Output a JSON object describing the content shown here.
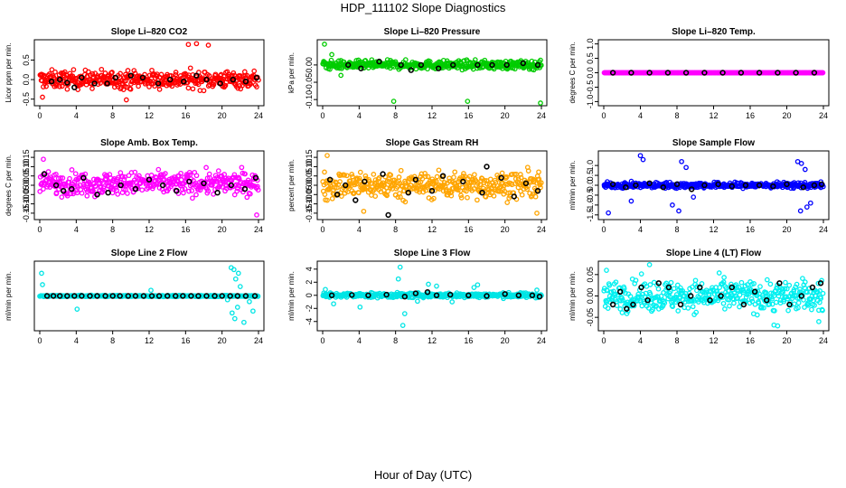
{
  "title": "HDP_111102  Slope Diagnostics",
  "xlabel": "Hour of Day (UTC)",
  "chart_data": [
    {
      "type": "scatter",
      "title": "Slope Li–820 CO2",
      "ylabel": "Licor ppm per min.",
      "xlim": [
        0,
        24
      ],
      "ylim": [
        -0.6,
        0.95
      ],
      "xticks": [
        "0",
        "4",
        "8",
        "12",
        "16",
        "20",
        "24"
      ],
      "yticks": [
        "-0.5",
        "0.0",
        "0.5"
      ],
      "ytick_values": [
        -0.5,
        0.0,
        0.5
      ],
      "color": "#ff0000",
      "spread": 0.22,
      "center": 0.0,
      "outliers": [
        [
          16.3,
          0.9
        ],
        [
          17.2,
          0.92
        ],
        [
          18.5,
          0.88
        ],
        [
          0.3,
          -0.45
        ],
        [
          9.5,
          -0.52
        ]
      ],
      "black_points": [
        [
          1.3,
          -0.05
        ],
        [
          2.2,
          0.0
        ],
        [
          3.0,
          -0.08
        ],
        [
          3.8,
          -0.2
        ],
        [
          4.6,
          0.05
        ],
        [
          6.0,
          -0.1
        ],
        [
          7.4,
          -0.1
        ],
        [
          8.3,
          0.05
        ],
        [
          10.0,
          0.1
        ],
        [
          11.3,
          0.05
        ],
        [
          13.0,
          -0.1
        ],
        [
          14.3,
          0.0
        ],
        [
          15.8,
          -0.05
        ],
        [
          17.2,
          0.1
        ],
        [
          18.3,
          0.0
        ],
        [
          19.8,
          -0.1
        ],
        [
          21.2,
          0.0
        ],
        [
          22.6,
          -0.05
        ],
        [
          23.8,
          0.05
        ]
      ]
    },
    {
      "type": "scatter",
      "title": "Slope Li–820 Pressure",
      "ylabel": "kPa per min.",
      "xlim": [
        0,
        24
      ],
      "ylim": [
        -0.11,
        0.065
      ],
      "xticks": [
        "0",
        "4",
        "8",
        "12",
        "16",
        "20",
        "24"
      ],
      "yticks": [
        "-0.10",
        "-0.05",
        "0.00"
      ],
      "ytick_values": [
        -0.1,
        -0.05,
        0.0
      ],
      "color": "#00cc00",
      "spread": 0.012,
      "center": 0.0,
      "outliers": [
        [
          0.2,
          0.06
        ],
        [
          7.8,
          -0.105
        ],
        [
          15.9,
          -0.105
        ],
        [
          23.9,
          -0.11
        ],
        [
          1.0,
          0.03
        ],
        [
          2.0,
          -0.03
        ]
      ],
      "black_points": [
        [
          2.8,
          0.0
        ],
        [
          4.2,
          -0.01
        ],
        [
          6.2,
          0.01
        ],
        [
          8.6,
          0.0
        ],
        [
          9.7,
          -0.015
        ],
        [
          10.8,
          0.0
        ],
        [
          12.7,
          -0.01
        ],
        [
          14.3,
          0.0
        ],
        [
          17.0,
          0.0
        ],
        [
          18.6,
          0.0
        ],
        [
          20.2,
          0.0
        ],
        [
          22.0,
          0.005
        ],
        [
          23.6,
          0.0
        ]
      ]
    },
    {
      "type": "scatter",
      "title": "Slope Li–820 Temp.",
      "ylabel": "degrees C per min.",
      "xlim": [
        0,
        24
      ],
      "ylim": [
        -1.05,
        1.05
      ],
      "xticks": [
        "0",
        "4",
        "8",
        "12",
        "16",
        "20",
        "24"
      ],
      "yticks": [
        "-1.0",
        "-0.5",
        "0.0",
        "0.5",
        "1.0"
      ],
      "ytick_values": [
        -1.0,
        -0.5,
        0.0,
        0.5,
        1.0
      ],
      "color": "#ff00ff",
      "spread": 0.0,
      "center": 0.0,
      "outliers": [],
      "black_points": [
        [
          1.0,
          0.0
        ],
        [
          3.0,
          0.0
        ],
        [
          5.0,
          0.0
        ],
        [
          7.0,
          0.0
        ],
        [
          9.0,
          0.0
        ],
        [
          11.0,
          0.0
        ],
        [
          13.0,
          0.0
        ],
        [
          15.0,
          0.0
        ],
        [
          17.0,
          0.0
        ],
        [
          19.0,
          0.0
        ],
        [
          21.0,
          0.0
        ],
        [
          23.0,
          0.0
        ]
      ]
    },
    {
      "type": "scatter",
      "title": "Slope Amb. Box Temp.",
      "ylabel": "degrees C per min.",
      "xlim": [
        0,
        24
      ],
      "ylim": [
        -0.17,
        0.17
      ],
      "xticks": [
        "0",
        "4",
        "8",
        "12",
        "16",
        "20",
        "24"
      ],
      "yticks": [
        "-0.15",
        "-0.10",
        "-0.05",
        "0.00",
        "0.05",
        "0.10",
        "0.15"
      ],
      "ytick_values": [
        -0.15,
        -0.1,
        -0.05,
        0.0,
        0.05,
        0.1,
        0.15
      ],
      "color": "#ff00ff",
      "spread": 0.06,
      "center": 0.01,
      "outliers": [
        [
          23.8,
          -0.16
        ],
        [
          0.4,
          0.14
        ]
      ],
      "black_points": [
        [
          0.5,
          0.06
        ],
        [
          1.8,
          0.0
        ],
        [
          2.6,
          -0.03
        ],
        [
          3.5,
          -0.02
        ],
        [
          4.8,
          0.04
        ],
        [
          6.3,
          -0.05
        ],
        [
          7.5,
          -0.04
        ],
        [
          8.9,
          0.0
        ],
        [
          10.5,
          -0.02
        ],
        [
          12.0,
          0.03
        ],
        [
          13.5,
          0.0
        ],
        [
          15.0,
          -0.03
        ],
        [
          16.4,
          0.02
        ],
        [
          18.0,
          0.01
        ],
        [
          19.5,
          -0.04
        ],
        [
          21.0,
          0.0
        ],
        [
          22.5,
          -0.02
        ],
        [
          23.7,
          0.04
        ]
      ]
    },
    {
      "type": "scatter",
      "title": "Slope Gas Stream RH",
      "ylabel": "percent per min.",
      "xlim": [
        0,
        24
      ],
      "ylim": [
        -0.17,
        0.17
      ],
      "xticks": [
        "0",
        "4",
        "8",
        "12",
        "16",
        "20",
        "24"
      ],
      "yticks": [
        "-0.15",
        "-0.10",
        "-0.05",
        "0.00",
        "0.05",
        "0.10",
        "0.15"
      ],
      "ytick_values": [
        -0.15,
        -0.1,
        -0.05,
        0.0,
        0.05,
        0.1,
        0.15
      ],
      "color": "#ffa500",
      "spread": 0.07,
      "center": 0.0,
      "outliers": [
        [
          0.5,
          0.16
        ],
        [
          23.5,
          -0.15
        ],
        [
          4.5,
          -0.14
        ]
      ],
      "black_points": [
        [
          0.8,
          0.03
        ],
        [
          1.6,
          -0.05
        ],
        [
          2.5,
          0.0
        ],
        [
          3.6,
          -0.08
        ],
        [
          4.6,
          0.02
        ],
        [
          6.6,
          0.06
        ],
        [
          7.2,
          -0.16
        ],
        [
          9.4,
          -0.04
        ],
        [
          10.2,
          0.03
        ],
        [
          12.0,
          -0.03
        ],
        [
          13.2,
          0.05
        ],
        [
          15.4,
          0.02
        ],
        [
          17.5,
          -0.04
        ],
        [
          18.0,
          0.1
        ],
        [
          19.6,
          0.04
        ],
        [
          21.0,
          -0.06
        ],
        [
          22.3,
          0.01
        ],
        [
          23.6,
          -0.03
        ]
      ]
    },
    {
      "type": "scatter",
      "title": "Slope Sample Flow",
      "ylabel": "ml/min per min.",
      "xlim": [
        0,
        24
      ],
      "ylim": [
        -1.6,
        1.6
      ],
      "xticks": [
        "0",
        "4",
        "8",
        "12",
        "16",
        "20",
        "24"
      ],
      "yticks": [
        "-1.5",
        "-1.0",
        "-0.5",
        "0.0",
        "0.5",
        "1.0"
      ],
      "ytick_values": [
        -1.5,
        -1.0,
        -0.5,
        0.0,
        0.5,
        1.0
      ],
      "color": "#0000ff",
      "spread": 0.14,
      "center": 0.0,
      "outliers": [
        [
          4.0,
          1.5
        ],
        [
          4.3,
          1.3
        ],
        [
          8.5,
          1.2
        ],
        [
          9.0,
          0.9
        ],
        [
          0.5,
          -1.4
        ],
        [
          7.5,
          -1.0
        ],
        [
          8.2,
          -1.3
        ],
        [
          21.2,
          1.2
        ],
        [
          21.6,
          1.1
        ],
        [
          22.0,
          0.8
        ],
        [
          21.5,
          -1.3
        ],
        [
          22.2,
          -1.1
        ],
        [
          22.6,
          -0.9
        ],
        [
          3.0,
          -0.8
        ],
        [
          9.8,
          -0.6
        ]
      ],
      "black_points": [
        [
          1.0,
          0.05
        ],
        [
          2.4,
          -0.1
        ],
        [
          3.5,
          0.0
        ],
        [
          5.0,
          0.1
        ],
        [
          6.5,
          -0.1
        ],
        [
          8.0,
          0.05
        ],
        [
          9.6,
          -0.2
        ],
        [
          11.0,
          0.0
        ],
        [
          12.5,
          0.05
        ],
        [
          14.0,
          -0.05
        ],
        [
          15.5,
          0.0
        ],
        [
          17.0,
          0.0
        ],
        [
          18.5,
          -0.05
        ],
        [
          20.0,
          0.05
        ],
        [
          21.8,
          -0.1
        ],
        [
          23.0,
          0.0
        ],
        [
          23.8,
          0.05
        ]
      ]
    },
    {
      "type": "scatter",
      "title": "Slope Line 2 Flow",
      "ylabel": "ml/min per min.",
      "xlim": [
        0,
        24
      ],
      "ylim": [
        -1.7,
        1.7
      ],
      "xticks": [
        "0",
        "4",
        "8",
        "12",
        "16",
        "20",
        "24"
      ],
      "yticks": [],
      "ytick_values": [],
      "color": "#00e5e5",
      "spread": 0.03,
      "center": 0.0,
      "outliers": [
        [
          0.2,
          1.2
        ],
        [
          0.3,
          0.6
        ],
        [
          4.1,
          -0.7
        ],
        [
          12.2,
          0.3
        ],
        [
          21.0,
          1.5
        ],
        [
          21.3,
          1.4
        ],
        [
          21.5,
          0.9
        ],
        [
          21.8,
          1.2
        ],
        [
          22.0,
          0.5
        ],
        [
          21.1,
          -0.9
        ],
        [
          21.4,
          -1.2
        ],
        [
          21.7,
          -0.6
        ],
        [
          22.4,
          -1.4
        ],
        [
          23.0,
          -0.3
        ],
        [
          23.4,
          -0.8
        ],
        [
          20.6,
          -0.2
        ]
      ],
      "black_points": [
        [
          0.8,
          0.0
        ],
        [
          1.5,
          0.0
        ],
        [
          2.2,
          0.0
        ],
        [
          3.0,
          0.0
        ],
        [
          3.8,
          0.0
        ],
        [
          4.6,
          0.0
        ],
        [
          5.5,
          0.0
        ],
        [
          6.3,
          0.0
        ],
        [
          7.2,
          0.0
        ],
        [
          8.0,
          0.0
        ],
        [
          8.8,
          0.0
        ],
        [
          9.7,
          0.0
        ],
        [
          10.5,
          0.0
        ],
        [
          11.4,
          0.0
        ],
        [
          12.3,
          0.0
        ],
        [
          13.1,
          0.0
        ],
        [
          14.0,
          0.0
        ],
        [
          14.9,
          0.0
        ],
        [
          15.7,
          0.0
        ],
        [
          16.6,
          0.0
        ],
        [
          17.4,
          0.0
        ],
        [
          18.3,
          0.0
        ],
        [
          19.2,
          0.0
        ],
        [
          20.0,
          0.0
        ],
        [
          20.9,
          0.0
        ],
        [
          21.7,
          0.0
        ],
        [
          22.6,
          0.0
        ],
        [
          23.6,
          0.0
        ]
      ]
    },
    {
      "type": "scatter",
      "title": "Slope Line 3 Flow",
      "ylabel": "ml/min per min.",
      "xlim": [
        0,
        24
      ],
      "ylim": [
        -5.0,
        4.8
      ],
      "xticks": [
        "0",
        "4",
        "8",
        "12",
        "16",
        "20",
        "24"
      ],
      "yticks": [
        "-4",
        "-2",
        "0",
        "2",
        "4"
      ],
      "ytick_values": [
        -4,
        -2,
        0,
        2,
        4
      ],
      "color": "#00e5e5",
      "spread": 0.35,
      "center": 0.0,
      "outliers": [
        [
          8.5,
          4.3
        ],
        [
          8.8,
          -4.6
        ],
        [
          0.3,
          0.9
        ],
        [
          4.1,
          -1.8
        ],
        [
          1.2,
          -1.3
        ],
        [
          11.6,
          1.7
        ],
        [
          12.5,
          1.4
        ],
        [
          16.6,
          1.2
        ],
        [
          17.0,
          1.6
        ],
        [
          10.4,
          -0.9
        ],
        [
          14.2,
          -1.0
        ],
        [
          23.5,
          0.8
        ],
        [
          8.3,
          2.5
        ],
        [
          9.0,
          -2.8
        ]
      ],
      "black_points": [
        [
          1.0,
          0.0
        ],
        [
          3.2,
          0.05
        ],
        [
          5.0,
          0.0
        ],
        [
          7.0,
          0.1
        ],
        [
          9.0,
          -0.2
        ],
        [
          10.2,
          0.3
        ],
        [
          11.5,
          0.5
        ],
        [
          12.5,
          0.0
        ],
        [
          14.0,
          0.1
        ],
        [
          16.0,
          0.0
        ],
        [
          18.0,
          -0.1
        ],
        [
          20.0,
          0.2
        ],
        [
          21.5,
          0.0
        ],
        [
          23.0,
          0.0
        ],
        [
          23.8,
          -0.2
        ]
      ]
    },
    {
      "type": "scatter",
      "title": "Slope Line 4 (LT) Flow",
      "ylabel": "ml/min per min.",
      "xlim": [
        0,
        24
      ],
      "ylim": [
        -0.075,
        0.075
      ],
      "xticks": [
        "0",
        "4",
        "8",
        "12",
        "16",
        "20",
        "24"
      ],
      "yticks": [
        "-0.05",
        "0.00",
        "0.05"
      ],
      "ytick_values": [
        -0.05,
        0.0,
        0.05
      ],
      "color": "#00f0f0",
      "spread": 0.035,
      "center": 0.0,
      "outliers": [
        [
          5.0,
          0.073
        ],
        [
          18.6,
          -0.068
        ],
        [
          19.0,
          -0.07
        ],
        [
          0.3,
          0.06
        ],
        [
          23.5,
          -0.06
        ]
      ],
      "black_points": [
        [
          1.0,
          -0.02
        ],
        [
          1.8,
          0.01
        ],
        [
          2.5,
          -0.03
        ],
        [
          3.2,
          -0.02
        ],
        [
          4.1,
          0.02
        ],
        [
          4.8,
          -0.01
        ],
        [
          6.0,
          0.03
        ],
        [
          7.1,
          0.02
        ],
        [
          8.4,
          -0.02
        ],
        [
          9.5,
          0.0
        ],
        [
          10.5,
          0.02
        ],
        [
          11.6,
          -0.01
        ],
        [
          12.8,
          0.0
        ],
        [
          14.0,
          0.02
        ],
        [
          15.3,
          -0.02
        ],
        [
          16.5,
          0.01
        ],
        [
          17.8,
          -0.01
        ],
        [
          19.2,
          0.03
        ],
        [
          20.3,
          -0.02
        ],
        [
          21.6,
          0.0
        ],
        [
          22.8,
          0.02
        ],
        [
          23.7,
          0.03
        ]
      ]
    }
  ]
}
